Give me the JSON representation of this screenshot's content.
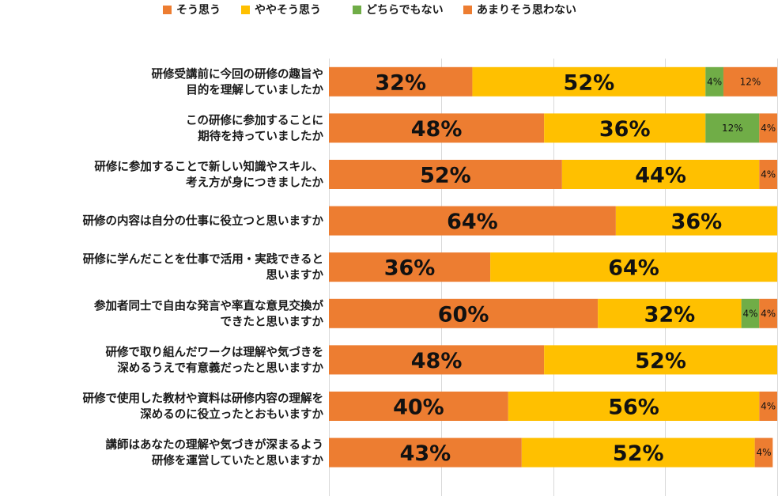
{
  "chart_data": {
    "type": "bar",
    "orientation": "horizontal",
    "stacked": "percent",
    "legend_position": "top",
    "grid": true,
    "xlim": [
      0,
      100
    ],
    "categories": [
      [
        "研修受講前に今回の研修の趣旨や",
        "目的を理解していましたか"
      ],
      [
        "この研修に参加することに",
        "期待を持っていましたか"
      ],
      [
        "研修に参加することで新しい知識やスキル、",
        "考え方が身につきましたか"
      ],
      [
        "研修の内容は自分の仕事に役立つと思いますか"
      ],
      [
        "研修に学んだことを仕事で活用・実践できると",
        "思いますか"
      ],
      [
        "参加者同士で自由な発言や率直な意見交換が",
        "できたと思いますか"
      ],
      [
        "研修で取り組んだワークは理解や気づきを",
        "深めるうえで有意義だったと思いますか"
      ],
      [
        "研修で使用した教材や資料は研修内容の理解を",
        "深めるのに役立ったとおもいますか"
      ],
      [
        "講師はあなたの理解や気づきが深まるよう",
        "研修を運営していたと思いますか"
      ]
    ],
    "series": [
      {
        "name": "そう思う",
        "color": "#ED7D31",
        "values": [
          32,
          48,
          52,
          64,
          36,
          60,
          48,
          40,
          43
        ]
      },
      {
        "name": "ややそう思う",
        "color": "#FFC000",
        "values": [
          52,
          36,
          44,
          36,
          64,
          32,
          52,
          56,
          52
        ]
      },
      {
        "name": "どちらでもない",
        "color": "#70AD47",
        "values": [
          4,
          12,
          0,
          0,
          0,
          4,
          0,
          0,
          0
        ]
      },
      {
        "name": "あまりそう思わない",
        "color": "#ED7D31",
        "values": [
          12,
          4,
          4,
          0,
          0,
          4,
          0,
          4,
          4
        ]
      }
    ],
    "segment_labels": [
      [
        "32%",
        "52%",
        "4%",
        "12%"
      ],
      [
        "48%",
        "36%",
        "12%",
        "4%"
      ],
      [
        "52%",
        "44%",
        "",
        "4%"
      ],
      [
        "64%",
        "36%",
        "",
        ""
      ],
      [
        "36%",
        "64%",
        "",
        ""
      ],
      [
        "60%",
        "32%",
        "4%",
        "4%"
      ],
      [
        "48%",
        "52%",
        "",
        ""
      ],
      [
        "40%",
        "56%",
        "",
        "4%"
      ],
      [
        "43%",
        "52%",
        "",
        "4%"
      ]
    ],
    "title": "",
    "xlabel": "",
    "ylabel": ""
  }
}
